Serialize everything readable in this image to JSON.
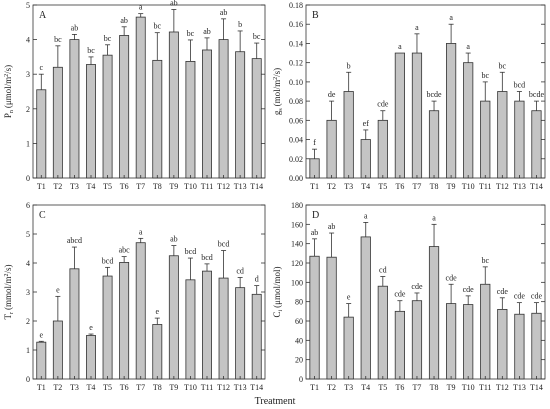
{
  "figure": {
    "xlabel": "Treatment",
    "bar_color": "#c4c4c4",
    "bar_edge": "#333333",
    "axis_color": "#333333"
  },
  "chart_data": [
    {
      "type": "bar",
      "panel": "A",
      "categories": [
        "T1",
        "T2",
        "T3",
        "T4",
        "T5",
        "T6",
        "T7",
        "T8",
        "T9",
        "T10",
        "T11",
        "T12",
        "T13",
        "T14"
      ],
      "values": [
        2.55,
        3.2,
        4.0,
        3.28,
        3.55,
        4.12,
        4.65,
        3.4,
        4.22,
        3.37,
        3.7,
        4.0,
        3.65,
        3.45
      ],
      "errors": [
        0.45,
        0.62,
        0.15,
        0.22,
        0.3,
        0.25,
        0.1,
        0.8,
        0.65,
        0.62,
        0.35,
        0.6,
        0.6,
        0.45
      ],
      "letters": [
        "c",
        "bc",
        "ab",
        "bc",
        "bc",
        "ab",
        "a",
        "bc",
        "ab",
        "bc",
        "ab",
        "ab",
        "b",
        "bc"
      ],
      "ylabel_main": "P",
      "ylabel_sub": "n",
      "ylabel_unit": "(μmol/m",
      "ylabel_unit_sup": "2",
      "ylabel_unit_end": "/s)",
      "ylim": [
        0,
        5
      ],
      "yticks": [
        "0",
        "1",
        "2",
        "3",
        "4",
        "5"
      ]
    },
    {
      "type": "bar",
      "panel": "B",
      "categories": [
        "T1",
        "T2",
        "T3",
        "T4",
        "T5",
        "T6",
        "T7",
        "T8",
        "T9",
        "T10",
        "T11",
        "T12",
        "T13",
        "T14"
      ],
      "values": [
        0.02,
        0.06,
        0.09,
        0.04,
        0.06,
        0.13,
        0.13,
        0.07,
        0.14,
        0.12,
        0.08,
        0.09,
        0.08,
        0.07
      ],
      "errors": [
        0.01,
        0.02,
        0.02,
        0.01,
        0.01,
        0.0,
        0.02,
        0.01,
        0.02,
        0.01,
        0.02,
        0.02,
        0.01,
        0.01
      ],
      "letters": [
        "f",
        "de",
        "b",
        "ef",
        "cde",
        "a",
        "a",
        "bcde",
        "a",
        "a",
        "bc",
        "bc",
        "bcd",
        "bcde"
      ],
      "ylabel_main": "g",
      "ylabel_sub": "s",
      "ylabel_unit": "(mol/m",
      "ylabel_unit_sup": "2",
      "ylabel_unit_end": "/s)",
      "ylim": [
        0,
        0.18
      ],
      "yticks": [
        "0.00",
        "0.02",
        "0.04",
        "0.06",
        "0.08",
        "0.10",
        "0.12",
        "0.14",
        "0.16",
        "0.18"
      ]
    },
    {
      "type": "bar",
      "panel": "C",
      "categories": [
        "T1",
        "T2",
        "T3",
        "T4",
        "T5",
        "T6",
        "T7",
        "T8",
        "T9",
        "T10",
        "T11",
        "T12",
        "T13",
        "T14"
      ],
      "values": [
        1.27,
        2.0,
        3.8,
        1.5,
        3.55,
        4.02,
        4.7,
        1.88,
        4.25,
        3.42,
        3.72,
        3.48,
        3.15,
        2.92
      ],
      "errors": [
        0.03,
        0.85,
        0.75,
        0.05,
        0.3,
        0.2,
        0.15,
        0.22,
        0.35,
        0.75,
        0.25,
        0.95,
        0.35,
        0.3
      ],
      "letters": [
        "e",
        "e",
        "abcd",
        "e",
        "bcd",
        "abc",
        "a",
        "e",
        "ab",
        "bcd",
        "bcd",
        "bcd",
        "cd",
        "d"
      ],
      "ylabel_main": "T",
      "ylabel_sub": "r",
      "ylabel_unit": "(mmol/m",
      "ylabel_unit_sup": "2",
      "ylabel_unit_end": "/s)",
      "ylim": [
        0,
        6
      ],
      "yticks": [
        "0",
        "1",
        "2",
        "3",
        "4",
        "5",
        "6"
      ]
    },
    {
      "type": "bar",
      "panel": "D",
      "categories": [
        "T1",
        "T2",
        "T3",
        "T4",
        "T5",
        "T6",
        "T7",
        "T8",
        "T9",
        "T10",
        "T11",
        "T12",
        "T13",
        "T14"
      ],
      "values": [
        127,
        126,
        64,
        147,
        96,
        70,
        81,
        137,
        78,
        77,
        98,
        72,
        67,
        68
      ],
      "errors": [
        18,
        25,
        14,
        15,
        10,
        11,
        8,
        23,
        20,
        9,
        18,
        12,
        12,
        11
      ],
      "letters": [
        "ab",
        "ab",
        "e",
        "a",
        "cd",
        "cde",
        "cde",
        "a",
        "cde",
        "cde",
        "bc",
        "cde",
        "cde",
        "cde"
      ],
      "ylabel_main": "C",
      "ylabel_sub": "i",
      "ylabel_unit": "(μmol/mol)",
      "ylabel_unit_sup": "",
      "ylabel_unit_end": "",
      "ylim": [
        0,
        180
      ],
      "yticks": [
        "0",
        "20",
        "40",
        "60",
        "80",
        "100",
        "120",
        "140",
        "160",
        "180"
      ]
    }
  ]
}
